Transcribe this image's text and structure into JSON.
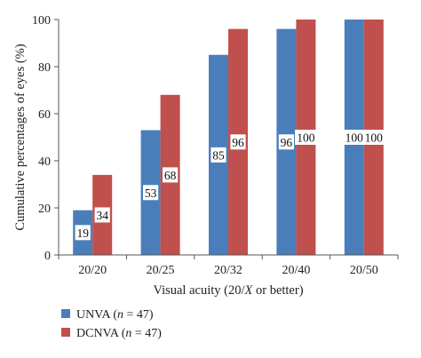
{
  "chart_data": {
    "type": "bar",
    "categories": [
      "20/20",
      "20/25",
      "20/32",
      "20/40",
      "20/50"
    ],
    "series": [
      {
        "name_prefix": "UNVA (",
        "name_var": "n",
        "name_suffix": " = 47)",
        "color": "#4a7ebb",
        "values": [
          19,
          53,
          85,
          96,
          100
        ],
        "labels": [
          "19",
          "53",
          "85",
          "96",
          "100"
        ]
      },
      {
        "name_prefix": "DCNVA (",
        "name_var": "n",
        "name_suffix": " = 47)",
        "color": "#c0504d",
        "values": [
          34,
          68,
          96,
          100,
          100
        ],
        "labels": [
          "34",
          "68",
          "96",
          "100",
          "100"
        ]
      }
    ],
    "xlabel_prefix": "Visual acuity (20/",
    "xlabel_var": "X",
    "xlabel_suffix": " or better)",
    "ylabel": "Cumulative percentages of eyes (%)",
    "ylim": [
      0,
      100
    ],
    "yticks": [
      "0",
      "20",
      "40",
      "60",
      "80",
      "100"
    ],
    "grid": false,
    "legend_position": "bottom-left"
  }
}
